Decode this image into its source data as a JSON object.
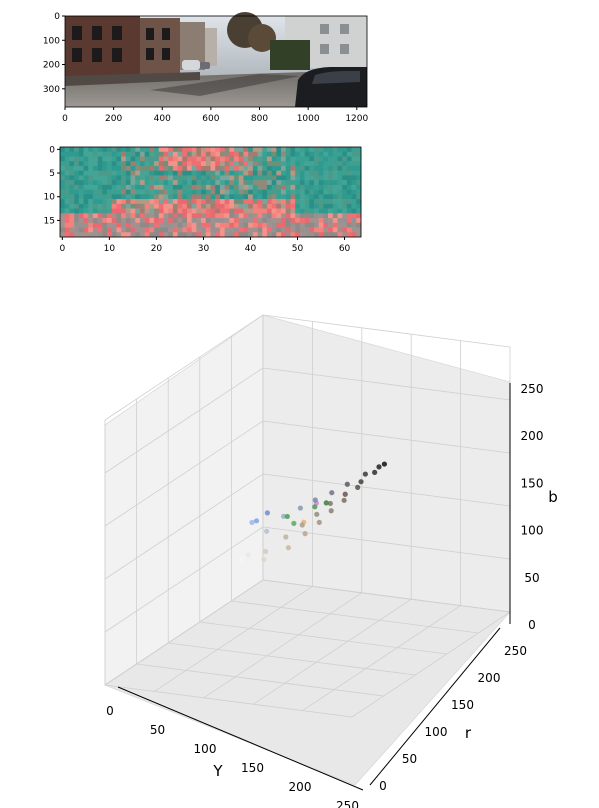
{
  "chart_data": [
    {
      "type": "image",
      "xlabel": "",
      "ylabel": "",
      "xlim": [
        0,
        1242
      ],
      "ylim": [
        375,
        0
      ],
      "x_ticks": [
        "0",
        "200",
        "400",
        "600",
        "800",
        "1000",
        "1200"
      ],
      "y_ticks": [
        "0",
        "100",
        "200",
        "300"
      ]
    },
    {
      "type": "heatmap",
      "xlabel": "",
      "ylabel": "",
      "xlim": [
        0,
        64
      ],
      "ylim": [
        19,
        0
      ],
      "x_ticks": [
        "0",
        "10",
        "20",
        "30",
        "40",
        "50",
        "60"
      ],
      "y_ticks": [
        "0",
        "5",
        "10",
        "15"
      ]
    },
    {
      "type": "scatter",
      "xlabel": "Y",
      "ylabel": "r",
      "zlabel": "b",
      "xlim": [
        0,
        250
      ],
      "ylim": [
        0,
        250
      ],
      "zlim": [
        0,
        250
      ],
      "x_ticks": [
        "0",
        "50",
        "100",
        "150",
        "200",
        "250"
      ],
      "y_ticks": [
        "0",
        "50",
        "100",
        "150",
        "200",
        "250"
      ],
      "z_ticks": [
        "0",
        "50",
        "100",
        "150",
        "200",
        "250"
      ],
      "grid": true,
      "points": [
        {
          "Y": 8,
          "r": 128,
          "b": 128,
          "color": "#111111"
        },
        {
          "Y": 15,
          "r": 127,
          "b": 128,
          "color": "#222222"
        },
        {
          "Y": 25,
          "r": 129,
          "b": 127,
          "color": "#2e2e2e"
        },
        {
          "Y": 35,
          "r": 126,
          "b": 129,
          "color": "#3a3833"
        },
        {
          "Y": 45,
          "r": 128,
          "b": 126,
          "color": "#45423c"
        },
        {
          "Y": 55,
          "r": 131,
          "b": 125,
          "color": "#56504a"
        },
        {
          "Y": 62,
          "r": 125,
          "b": 130,
          "color": "#5d5a62"
        },
        {
          "Y": 70,
          "r": 128,
          "b": 124,
          "color": "#6a6456"
        },
        {
          "Y": 78,
          "r": 132,
          "b": 122,
          "color": "#7a7060"
        },
        {
          "Y": 85,
          "r": 124,
          "b": 131,
          "color": "#6f7485"
        },
        {
          "Y": 92,
          "r": 127,
          "b": 124,
          "color": "#807866"
        },
        {
          "Y": 100,
          "r": 133,
          "b": 121,
          "color": "#8e8070"
        },
        {
          "Y": 108,
          "r": 122,
          "b": 133,
          "color": "#7d86a0"
        },
        {
          "Y": 115,
          "r": 128,
          "b": 123,
          "color": "#958c78"
        },
        {
          "Y": 122,
          "r": 135,
          "b": 119,
          "color": "#a39380"
        },
        {
          "Y": 130,
          "r": 121,
          "b": 134,
          "color": "#8a96b4"
        },
        {
          "Y": 138,
          "r": 128,
          "b": 122,
          "color": "#a9a08c"
        },
        {
          "Y": 146,
          "r": 136,
          "b": 118,
          "color": "#b8a48e"
        },
        {
          "Y": 155,
          "r": 120,
          "b": 136,
          "color": "#9fabc8"
        },
        {
          "Y": 164,
          "r": 128,
          "b": 121,
          "color": "#bcb3a0"
        },
        {
          "Y": 174,
          "r": 137,
          "b": 116,
          "color": "#cbb79f"
        },
        {
          "Y": 185,
          "r": 122,
          "b": 134,
          "color": "#b5c0d8"
        },
        {
          "Y": 196,
          "r": 128,
          "b": 120,
          "color": "#d2ccc0"
        },
        {
          "Y": 208,
          "r": 134,
          "b": 118,
          "color": "#e2d6c4"
        },
        {
          "Y": 220,
          "r": 126,
          "b": 126,
          "color": "#ece9e4"
        },
        {
          "Y": 235,
          "r": 128,
          "b": 128,
          "color": "#f6f6f6"
        },
        {
          "Y": 90,
          "r": 110,
          "b": 118,
          "color": "#4f9a55"
        },
        {
          "Y": 75,
          "r": 112,
          "b": 116,
          "color": "#3c7d40"
        },
        {
          "Y": 120,
          "r": 108,
          "b": 114,
          "color": "#55ad5a"
        },
        {
          "Y": 110,
          "r": 95,
          "b": 115,
          "color": "#4aa050"
        },
        {
          "Y": 150,
          "r": 150,
          "b": 150,
          "color": "#d08ad8"
        },
        {
          "Y": 120,
          "r": 160,
          "b": 148,
          "color": "#e887a8"
        },
        {
          "Y": 170,
          "r": 150,
          "b": 140,
          "color": "#f0b070"
        },
        {
          "Y": 205,
          "r": 120,
          "b": 150,
          "color": "#9bb7f0"
        },
        {
          "Y": 190,
          "r": 115,
          "b": 145,
          "color": "#7fa6e0"
        },
        {
          "Y": 165,
          "r": 110,
          "b": 142,
          "color": "#6c8fcc"
        }
      ]
    }
  ]
}
